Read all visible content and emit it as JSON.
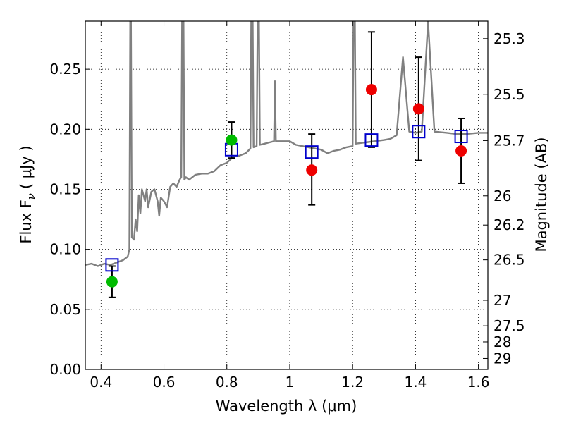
{
  "chart_data": {
    "type": "scatter",
    "xlabel": "Wavelength  λ (μm)",
    "ylabel": "Flux  F",
    "ylabel_sub": "ν",
    "ylabel_unit": "( μJy )",
    "ylabel_right": "Magnitude (AB)",
    "xlim": [
      0.35,
      1.63
    ],
    "ylim": [
      0.0,
      0.29
    ],
    "grid": true,
    "x_ticks": [
      0.4,
      0.6,
      0.8,
      1.0,
      1.2,
      1.4,
      1.6
    ],
    "x_tick_labels": [
      "0.4",
      "0.6",
      "0.8",
      "1",
      "1.2",
      "1.4",
      "1.6"
    ],
    "y_ticks": [
      0.0,
      0.05,
      0.1,
      0.15,
      0.2,
      0.25
    ],
    "y_tick_labels": [
      "0.00",
      "0.05",
      "0.10",
      "0.15",
      "0.20",
      "0.25"
    ],
    "mag_ticks": [
      25.3,
      25.5,
      25.7,
      26,
      26.2,
      26.5,
      27,
      27.5,
      28,
      29
    ],
    "mag_tick_labels": [
      "25.3",
      "25.5",
      "25.7",
      "26",
      "26.2",
      "26.5",
      "27",
      "27.5",
      "28",
      "29"
    ],
    "colors": {
      "spectrum": "#808080",
      "model": "#0000cc",
      "green": "#00bb00",
      "red": "#ee0000",
      "errorbar": "#000000"
    },
    "spectrum": [
      [
        0.35,
        0.087
      ],
      [
        0.37,
        0.088
      ],
      [
        0.39,
        0.086
      ],
      [
        0.41,
        0.088
      ],
      [
        0.43,
        0.087
      ],
      [
        0.45,
        0.089
      ],
      [
        0.47,
        0.091
      ],
      [
        0.485,
        0.094
      ],
      [
        0.49,
        0.1
      ],
      [
        0.493,
        0.3
      ],
      [
        0.495,
        0.3
      ],
      [
        0.498,
        0.11
      ],
      [
        0.505,
        0.108
      ],
      [
        0.51,
        0.125
      ],
      [
        0.515,
        0.115
      ],
      [
        0.52,
        0.145
      ],
      [
        0.525,
        0.13
      ],
      [
        0.53,
        0.15
      ],
      [
        0.54,
        0.14
      ],
      [
        0.545,
        0.15
      ],
      [
        0.55,
        0.135
      ],
      [
        0.56,
        0.148
      ],
      [
        0.57,
        0.15
      ],
      [
        0.58,
        0.14
      ],
      [
        0.585,
        0.128
      ],
      [
        0.59,
        0.143
      ],
      [
        0.6,
        0.14
      ],
      [
        0.61,
        0.135
      ],
      [
        0.62,
        0.152
      ],
      [
        0.63,
        0.155
      ],
      [
        0.64,
        0.152
      ],
      [
        0.65,
        0.158
      ],
      [
        0.655,
        0.16
      ],
      [
        0.658,
        0.3
      ],
      [
        0.662,
        0.3
      ],
      [
        0.665,
        0.158
      ],
      [
        0.67,
        0.16
      ],
      [
        0.68,
        0.158
      ],
      [
        0.69,
        0.16
      ],
      [
        0.7,
        0.162
      ],
      [
        0.72,
        0.163
      ],
      [
        0.74,
        0.163
      ],
      [
        0.76,
        0.165
      ],
      [
        0.78,
        0.17
      ],
      [
        0.8,
        0.172
      ],
      [
        0.82,
        0.177
      ],
      [
        0.84,
        0.178
      ],
      [
        0.86,
        0.18
      ],
      [
        0.875,
        0.184
      ],
      [
        0.878,
        0.3
      ],
      [
        0.882,
        0.3
      ],
      [
        0.885,
        0.185
      ],
      [
        0.895,
        0.186
      ],
      [
        0.898,
        0.3
      ],
      [
        0.902,
        0.3
      ],
      [
        0.905,
        0.187
      ],
      [
        0.92,
        0.188
      ],
      [
        0.95,
        0.19
      ],
      [
        0.953,
        0.24
      ],
      [
        0.956,
        0.19
      ],
      [
        0.97,
        0.19
      ],
      [
        1.0,
        0.19
      ],
      [
        1.02,
        0.187
      ],
      [
        1.04,
        0.186
      ],
      [
        1.06,
        0.185
      ],
      [
        1.08,
        0.184
      ],
      [
        1.1,
        0.183
      ],
      [
        1.12,
        0.18
      ],
      [
        1.14,
        0.182
      ],
      [
        1.16,
        0.183
      ],
      [
        1.18,
        0.185
      ],
      [
        1.2,
        0.186
      ],
      [
        1.203,
        0.3
      ],
      [
        1.207,
        0.3
      ],
      [
        1.21,
        0.188
      ],
      [
        1.24,
        0.189
      ],
      [
        1.27,
        0.19
      ],
      [
        1.3,
        0.191
      ],
      [
        1.32,
        0.192
      ],
      [
        1.34,
        0.195
      ],
      [
        1.36,
        0.26
      ],
      [
        1.38,
        0.198
      ],
      [
        1.4,
        0.197
      ],
      [
        1.42,
        0.198
      ],
      [
        1.44,
        0.29
      ],
      [
        1.46,
        0.198
      ],
      [
        1.5,
        0.197
      ],
      [
        1.53,
        0.196
      ],
      [
        1.56,
        0.196
      ],
      [
        1.6,
        0.197
      ],
      [
        1.63,
        0.197
      ]
    ],
    "model_points": [
      {
        "x": 0.435,
        "y": 0.087
      },
      {
        "x": 0.815,
        "y": 0.183
      },
      {
        "x": 1.07,
        "y": 0.181
      },
      {
        "x": 1.26,
        "y": 0.191
      },
      {
        "x": 1.41,
        "y": 0.198
      },
      {
        "x": 1.545,
        "y": 0.194
      }
    ],
    "observed_points": [
      {
        "x": 0.435,
        "y": 0.073,
        "err_low": 0.013,
        "err_high": 0.013,
        "color": "green"
      },
      {
        "x": 0.815,
        "y": 0.191,
        "err_low": 0.015,
        "err_high": 0.015,
        "color": "green"
      },
      {
        "x": 1.07,
        "y": 0.166,
        "err_low": 0.029,
        "err_high": 0.03,
        "color": "red"
      },
      {
        "x": 1.26,
        "y": 0.233,
        "err_low": 0.048,
        "err_high": 0.048,
        "color": "red"
      },
      {
        "x": 1.41,
        "y": 0.217,
        "err_low": 0.043,
        "err_high": 0.043,
        "color": "red"
      },
      {
        "x": 1.545,
        "y": 0.182,
        "err_low": 0.027,
        "err_high": 0.027,
        "color": "red"
      }
    ]
  }
}
